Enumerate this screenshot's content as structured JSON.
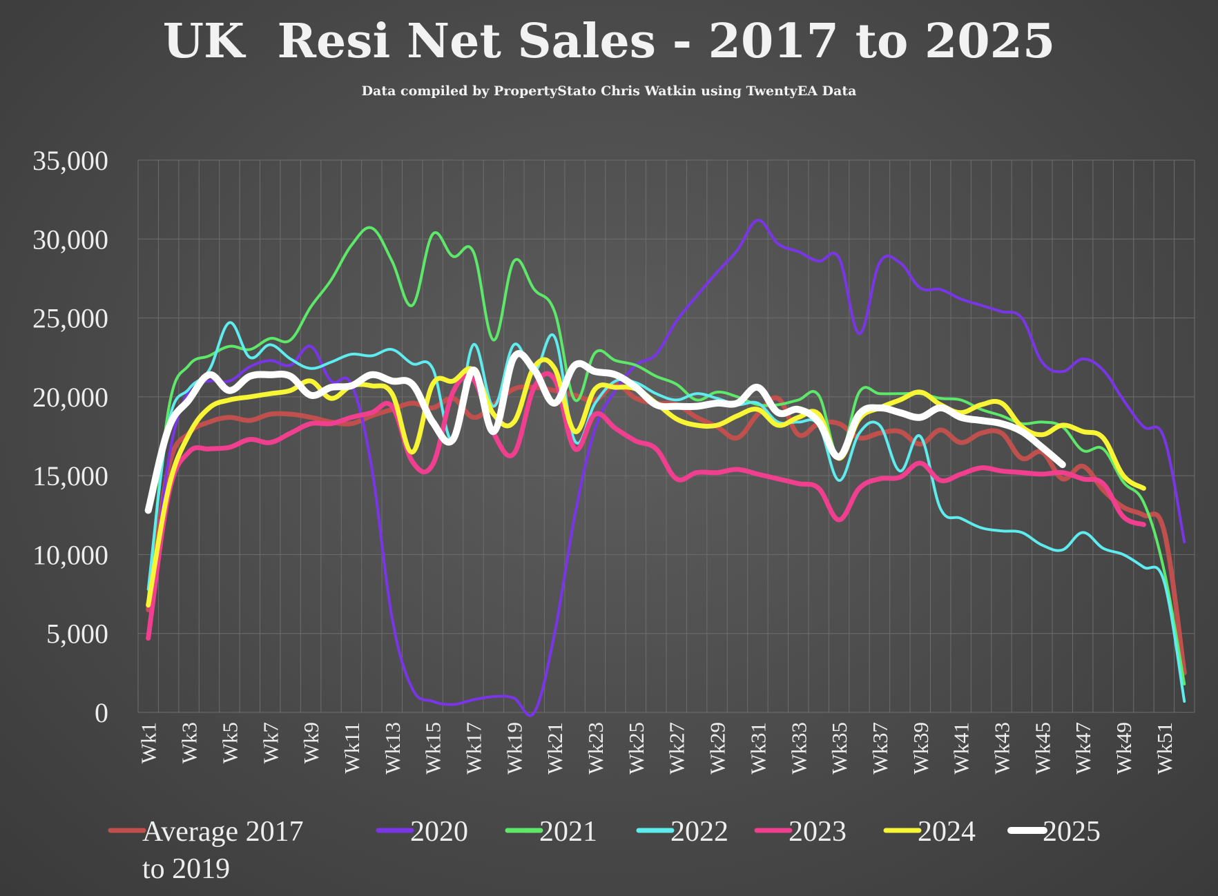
{
  "chart_data": {
    "type": "line",
    "title": "UK  Resi Net Sales - 2017 to 2025",
    "subtitle": "Data compiled by PropertyStato Chris Watkin using TwentyEA Data",
    "ylim": [
      0,
      35000
    ],
    "y_ticks": [
      "0",
      "5,000",
      "10,000",
      "15,000",
      "20,000",
      "25,000",
      "30,000",
      "35,000"
    ],
    "x_tick_labels": [
      "Wk1",
      "Wk3",
      "Wk5",
      "Wk7",
      "Wk9",
      "Wk11",
      "Wk13",
      "Wk15",
      "Wk17",
      "Wk19",
      "Wk21",
      "Wk23",
      "Wk25",
      "Wk27",
      "Wk29",
      "Wk31",
      "Wk33",
      "Wk35",
      "Wk37",
      "Wk39",
      "Wk41",
      "Wk43",
      "Wk45",
      "Wk47",
      "Wk49",
      "Wk51"
    ],
    "grid": true,
    "legend_position": "bottom",
    "series": [
      {
        "name": "Average 2017 to 2019",
        "legend_lines": [
          "Average 2017",
          "to 2019"
        ],
        "color": "#c0504d",
        "width": 7,
        "x": [
          1,
          2,
          3,
          4,
          5,
          6,
          7,
          8,
          9,
          10,
          11,
          12,
          13,
          14,
          15,
          16,
          17,
          18,
          19,
          20,
          21,
          22,
          23,
          24,
          25,
          26,
          27,
          28,
          29,
          30,
          31,
          32,
          33,
          34,
          35,
          36,
          37,
          38,
          39,
          40,
          41,
          42,
          43,
          44,
          45,
          46,
          47,
          48,
          49,
          50,
          51,
          52
        ],
        "values": [
          6500,
          15500,
          17700,
          18400,
          18700,
          18500,
          18900,
          18900,
          18700,
          18400,
          18300,
          18800,
          19200,
          19600,
          19300,
          19900,
          18700,
          19500,
          20500,
          20600,
          20400,
          20100,
          19800,
          20800,
          19900,
          19600,
          19500,
          18700,
          18100,
          17400,
          18900,
          19900,
          17600,
          18300,
          18300,
          17400,
          17700,
          17800,
          17000,
          17900,
          17100,
          17700,
          17700,
          16100,
          16500,
          14800,
          15600,
          14100,
          13000,
          12500,
          11500,
          2500
        ]
      },
      {
        "name": "2020",
        "color": "#7b35e8",
        "width": 4,
        "x": [
          1,
          2,
          3,
          4,
          5,
          6,
          7,
          8,
          9,
          10,
          11,
          12,
          13,
          14,
          15,
          16,
          17,
          18,
          19,
          20,
          21,
          22,
          23,
          24,
          25,
          26,
          27,
          28,
          29,
          30,
          31,
          32,
          33,
          34,
          35,
          36,
          37,
          38,
          39,
          40,
          41,
          42,
          43,
          44,
          45,
          46,
          47,
          48,
          49,
          50,
          51,
          52
        ],
        "values": [
          5000,
          16000,
          20400,
          21000,
          21000,
          21900,
          22300,
          22000,
          23200,
          21000,
          20800,
          15500,
          6000,
          1500,
          700,
          500,
          800,
          1000,
          900,
          0,
          5000,
          12500,
          18000,
          20400,
          22000,
          22700,
          24800,
          26400,
          27900,
          29300,
          31200,
          29700,
          29200,
          28600,
          28800,
          24000,
          28500,
          28500,
          26900,
          26800,
          26200,
          25800,
          25400,
          25000,
          22200,
          21600,
          22400,
          21700,
          19800,
          18100,
          17400,
          10800
        ]
      },
      {
        "name": "2021",
        "color": "#5ee86a",
        "width": 4,
        "x": [
          1,
          2,
          3,
          4,
          5,
          6,
          7,
          8,
          9,
          10,
          11,
          12,
          13,
          14,
          15,
          16,
          17,
          18,
          19,
          20,
          21,
          22,
          23,
          24,
          25,
          26,
          27,
          28,
          29,
          30,
          31,
          32,
          33,
          34,
          35,
          36,
          37,
          38,
          39,
          40,
          41,
          42,
          43,
          44,
          45,
          46,
          47,
          48,
          49,
          50,
          51,
          52
        ],
        "values": [
          7200,
          19200,
          22000,
          22600,
          23200,
          23000,
          23700,
          23600,
          25700,
          27400,
          29600,
          30700,
          28600,
          25800,
          30300,
          28900,
          29200,
          23600,
          28600,
          26800,
          25400,
          19800,
          22800,
          22300,
          22000,
          21300,
          20800,
          19800,
          20300,
          20000,
          19500,
          19500,
          19800,
          20100,
          16200,
          20300,
          20200,
          20200,
          20200,
          19900,
          19800,
          19200,
          18800,
          18300,
          18400,
          18100,
          16600,
          16700,
          14600,
          13300,
          9000,
          1800
        ]
      },
      {
        "name": "2022",
        "color": "#5eecee",
        "width": 4,
        "x": [
          1,
          2,
          3,
          4,
          5,
          6,
          7,
          8,
          9,
          10,
          11,
          12,
          13,
          14,
          15,
          16,
          17,
          18,
          19,
          20,
          21,
          22,
          23,
          24,
          25,
          26,
          27,
          28,
          29,
          30,
          31,
          32,
          33,
          34,
          35,
          36,
          37,
          38,
          39,
          40,
          41,
          42,
          43,
          44,
          45,
          46,
          47,
          48,
          49,
          50,
          51,
          52
        ],
        "values": [
          7800,
          18300,
          20500,
          21700,
          24700,
          22500,
          23300,
          22400,
          21800,
          22200,
          22700,
          22600,
          23000,
          22100,
          21800,
          17200,
          23300,
          19400,
          23300,
          21600,
          23800,
          17200,
          19600,
          21000,
          20900,
          20200,
          19800,
          20200,
          19900,
          19500,
          19600,
          18400,
          18400,
          18200,
          14700,
          17700,
          18200,
          15300,
          17500,
          12900,
          12300,
          11700,
          11500,
          11400,
          10600,
          10300,
          11400,
          10400,
          10000,
          9200,
          8300,
          700
        ]
      },
      {
        "name": "2023",
        "color": "#ef3f8e",
        "width": 7,
        "x": [
          1,
          2,
          3,
          4,
          5,
          6,
          7,
          8,
          9,
          10,
          11,
          12,
          13,
          14,
          15,
          16,
          17,
          18,
          19,
          20,
          21,
          22,
          23,
          24,
          25,
          26,
          27,
          28,
          29,
          30,
          31,
          32,
          33,
          34,
          35,
          36,
          37,
          38,
          39,
          40,
          41,
          42,
          43,
          44,
          45,
          46,
          47,
          48,
          49,
          50
        ],
        "values": [
          4700,
          13800,
          16500,
          16700,
          16800,
          17300,
          17100,
          17700,
          18300,
          18300,
          18700,
          19000,
          19400,
          15900,
          15700,
          20300,
          21100,
          17700,
          16400,
          20600,
          21100,
          16700,
          18900,
          18000,
          17200,
          16700,
          14800,
          15200,
          15200,
          15400,
          15100,
          14800,
          14500,
          14200,
          12200,
          14200,
          14800,
          14900,
          15800,
          14700,
          15100,
          15500,
          15300,
          15200,
          15100,
          15200,
          14800,
          14500,
          12400,
          11900
        ]
      },
      {
        "name": "2024",
        "color": "#f7f535",
        "width": 7,
        "x": [
          1,
          2,
          3,
          4,
          5,
          6,
          7,
          8,
          9,
          10,
          11,
          12,
          13,
          14,
          15,
          16,
          17,
          18,
          19,
          20,
          21,
          22,
          23,
          24,
          25,
          26,
          27,
          28,
          29,
          30,
          31,
          32,
          33,
          34,
          35,
          36,
          37,
          38,
          39,
          40,
          41,
          42,
          43,
          44,
          45,
          46,
          47,
          48,
          49,
          50
        ],
        "values": [
          6800,
          14200,
          17600,
          19300,
          19800,
          20000,
          20200,
          20400,
          21000,
          19900,
          20700,
          20700,
          20200,
          16500,
          20800,
          21000,
          21700,
          18900,
          18400,
          21900,
          21800,
          17800,
          20500,
          20600,
          20500,
          19600,
          18600,
          18200,
          18200,
          18800,
          19200,
          18200,
          18700,
          18900,
          16100,
          18600,
          19300,
          19800,
          20300,
          19500,
          19000,
          19500,
          19600,
          18100,
          17600,
          18200,
          17800,
          17400,
          15000,
          14200
        ]
      },
      {
        "name": "2025",
        "color": "#ffffff",
        "width": 10,
        "x": [
          1,
          2,
          3,
          4,
          5,
          6,
          7,
          8,
          9,
          10,
          11,
          12,
          13,
          14,
          15,
          16,
          17,
          18,
          19,
          20,
          21,
          22,
          23,
          24,
          25,
          26,
          27,
          28,
          29,
          30,
          31,
          32,
          33,
          34,
          35,
          36,
          37,
          38,
          39,
          40,
          41,
          42,
          43,
          44,
          45,
          46
        ],
        "values": [
          12800,
          18000,
          19800,
          21400,
          20400,
          21300,
          21400,
          21300,
          20100,
          20600,
          20700,
          21400,
          21000,
          20800,
          18400,
          17300,
          21700,
          17800,
          22500,
          21700,
          19600,
          22000,
          21600,
          21400,
          20600,
          19500,
          19400,
          19400,
          19600,
          19600,
          20600,
          19000,
          19200,
          18400,
          16200,
          18900,
          19300,
          19000,
          18700,
          19300,
          18700,
          18500,
          18300,
          17800,
          16800,
          15700
        ]
      }
    ]
  }
}
